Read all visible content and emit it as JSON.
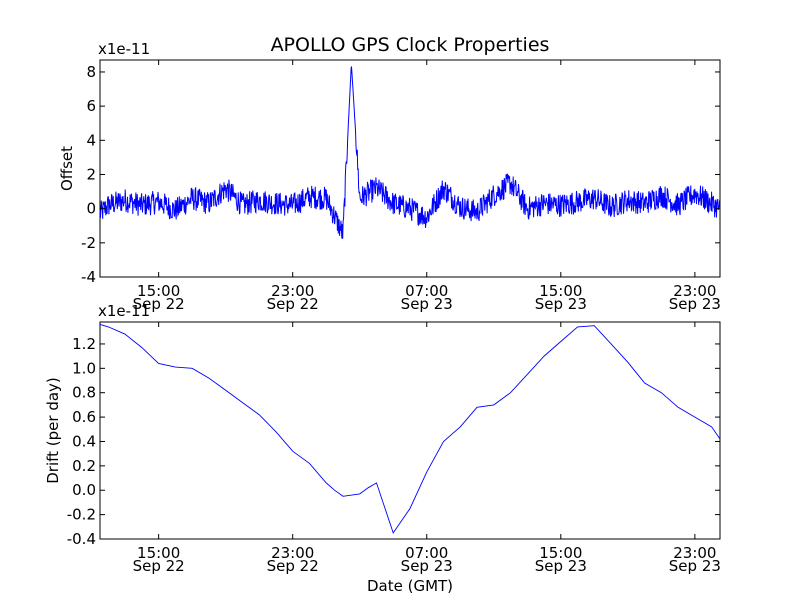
{
  "figure": {
    "title": "APOLLO GPS Clock Properties",
    "background": "#ffffff",
    "line_color": "#0000ff"
  },
  "chart_data": [
    {
      "type": "line",
      "name": "offset-panel",
      "title": "APOLLO GPS Clock Properties",
      "ylabel": "Offset",
      "xlabel": "",
      "y_multiplier_label": "x1e-11",
      "ylim": [
        -4,
        8.7
      ],
      "yticks": [
        -4,
        -2,
        0,
        2,
        4,
        6,
        8
      ],
      "ytick_labels": [
        "-4",
        "-2",
        "0",
        "2",
        "4",
        "6",
        "8"
      ],
      "xlim": [
        "Sep 22 11:30",
        "Sep 24 00:30"
      ],
      "xticks": [
        {
          "value": "Sep 22 15:00",
          "label_time": "15:00",
          "label_date": "Sep 22"
        },
        {
          "value": "Sep 22 23:00",
          "label_time": "23:00",
          "label_date": "Sep 22"
        },
        {
          "value": "Sep 23 07:00",
          "label_time": "07:00",
          "label_date": "Sep 23"
        },
        {
          "value": "Sep 23 15:00",
          "label_time": "15:00",
          "label_date": "Sep 23"
        },
        {
          "value": "Sep 23 23:00",
          "label_time": "23:00",
          "label_date": "Sep 23"
        }
      ],
      "series": [
        {
          "color": "#0000ff",
          "x": [
            "Sep 22 11:30",
            "Sep 22 12:00",
            "Sep 22 13:00",
            "Sep 22 14:00",
            "Sep 22 15:00",
            "Sep 22 16:00",
            "Sep 22 17:00",
            "Sep 22 18:00",
            "Sep 22 19:00",
            "Sep 22 20:00",
            "Sep 22 21:00",
            "Sep 22 22:00",
            "Sep 22 23:00",
            "Sep 23 00:00",
            "Sep 23 01:00",
            "Sep 23 02:00",
            "Sep 23 02:30",
            "Sep 23 03:00",
            "Sep 23 04:00",
            "Sep 23 05:00",
            "Sep 23 06:00",
            "Sep 23 07:00",
            "Sep 23 08:00",
            "Sep 23 09:00",
            "Sep 23 10:00",
            "Sep 23 11:00",
            "Sep 23 12:00",
            "Sep 23 13:00",
            "Sep 23 14:00",
            "Sep 23 15:00",
            "Sep 23 16:00",
            "Sep 23 17:00",
            "Sep 23 18:00",
            "Sep 23 19:00",
            "Sep 23 20:00",
            "Sep 23 21:00",
            "Sep 23 22:00",
            "Sep 23 23:00",
            "Sep 24 00:00",
            "Sep 24 00:30"
          ],
          "y": [
            -0.3,
            0.2,
            0.5,
            0.2,
            0.4,
            -0.1,
            0.6,
            0.3,
            1.2,
            0.2,
            0.5,
            0.3,
            0.2,
            0.7,
            0.6,
            -1.5,
            8.5,
            0.6,
            1.2,
            0.3,
            0.0,
            -0.5,
            1.2,
            0.1,
            -0.2,
            0.8,
            1.5,
            0.0,
            0.3,
            0.2,
            0.4,
            0.6,
            0.1,
            0.5,
            0.3,
            0.8,
            0.2,
            0.9,
            0.3,
            0.0
          ],
          "noise_amplitude": 0.7
        }
      ]
    },
    {
      "type": "line",
      "name": "drift-panel",
      "title": "",
      "ylabel": "Drift (per day)",
      "xlabel": "Date (GMT)",
      "y_multiplier_label": "x1e-11",
      "ylim": [
        -0.4,
        1.38
      ],
      "yticks": [
        -0.4,
        -0.2,
        0.0,
        0.2,
        0.4,
        0.6,
        0.8,
        1.0,
        1.2
      ],
      "ytick_labels": [
        "-0.4",
        "-0.2",
        "0.0",
        "0.2",
        "0.4",
        "0.6",
        "0.8",
        "1.0",
        "1.2"
      ],
      "xlim": [
        "Sep 22 11:30",
        "Sep 24 00:30"
      ],
      "xticks": [
        {
          "value": "Sep 22 15:00",
          "label_time": "15:00",
          "label_date": "Sep 22"
        },
        {
          "value": "Sep 22 23:00",
          "label_time": "23:00",
          "label_date": "Sep 22"
        },
        {
          "value": "Sep 23 07:00",
          "label_time": "07:00",
          "label_date": "Sep 23"
        },
        {
          "value": "Sep 23 15:00",
          "label_time": "15:00",
          "label_date": "Sep 23"
        },
        {
          "value": "Sep 23 23:00",
          "label_time": "23:00",
          "label_date": "Sep 23"
        }
      ],
      "series": [
        {
          "color": "#0000ff",
          "x": [
            "Sep 22 11:30",
            "Sep 22 12:00",
            "Sep 22 13:00",
            "Sep 22 14:00",
            "Sep 22 15:00",
            "Sep 22 16:00",
            "Sep 22 17:00",
            "Sep 22 18:00",
            "Sep 22 19:00",
            "Sep 22 20:00",
            "Sep 22 21:00",
            "Sep 22 22:00",
            "Sep 22 23:00",
            "Sep 23 00:00",
            "Sep 23 01:00",
            "Sep 23 01:30",
            "Sep 23 02:00",
            "Sep 23 03:00",
            "Sep 23 03:30",
            "Sep 23 04:00",
            "Sep 23 05:00",
            "Sep 23 06:00",
            "Sep 23 07:00",
            "Sep 23 08:00",
            "Sep 23 09:00",
            "Sep 23 10:00",
            "Sep 23 11:00",
            "Sep 23 12:00",
            "Sep 23 13:00",
            "Sep 23 14:00",
            "Sep 23 15:00",
            "Sep 23 16:00",
            "Sep 23 17:00",
            "Sep 23 18:00",
            "Sep 23 19:00",
            "Sep 23 20:00",
            "Sep 23 21:00",
            "Sep 23 22:00",
            "Sep 23 23:00",
            "Sep 24 00:00",
            "Sep 24 00:30"
          ],
          "y": [
            1.36,
            1.34,
            1.28,
            1.17,
            1.04,
            1.01,
            1.0,
            0.92,
            0.82,
            0.72,
            0.62,
            0.48,
            0.32,
            0.22,
            0.06,
            0.0,
            -0.05,
            -0.03,
            0.02,
            0.06,
            -0.35,
            -0.15,
            0.15,
            0.4,
            0.52,
            0.68,
            0.7,
            0.8,
            0.95,
            1.1,
            1.22,
            1.34,
            1.35,
            1.2,
            1.05,
            0.88,
            0.8,
            0.68,
            0.6,
            0.52,
            0.42
          ]
        }
      ]
    }
  ]
}
